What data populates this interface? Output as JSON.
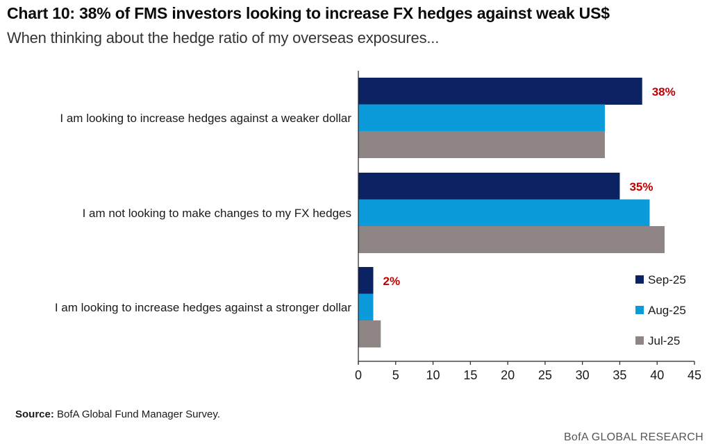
{
  "header": {
    "title": "Chart 10: 38% of FMS investors looking to increase FX hedges against weak US$",
    "subtitle": "When thinking about the hedge ratio of my overseas exposures..."
  },
  "chart_data": {
    "type": "bar",
    "orientation": "horizontal",
    "categories": [
      "I am looking to increase hedges against a weaker dollar",
      "I am not looking to make changes to my FX hedges",
      "I am looking to increase hedges against a stronger dollar"
    ],
    "series": [
      {
        "name": "Sep-25",
        "color": "#0b2263",
        "values": [
          38,
          35,
          2
        ]
      },
      {
        "name": "Aug-25",
        "color": "#0b9bdb",
        "values": [
          33,
          39,
          2
        ]
      },
      {
        "name": "Jul-25",
        "color": "#8f8584",
        "values": [
          33,
          41,
          3
        ]
      }
    ],
    "data_labels": [
      "38%",
      "35%",
      "2%"
    ],
    "data_label_color": "#c00000",
    "xlim": [
      0,
      45
    ],
    "xticks": [
      "0",
      "5",
      "10",
      "15",
      "20",
      "25",
      "30",
      "35",
      "40",
      "45"
    ],
    "grid": false,
    "legend_position": "bottom-right"
  },
  "footer": {
    "source_label": "Source:",
    "source_text": "BofA Global Fund Manager Survey.",
    "brand": "BofA GLOBAL RESEARCH"
  }
}
